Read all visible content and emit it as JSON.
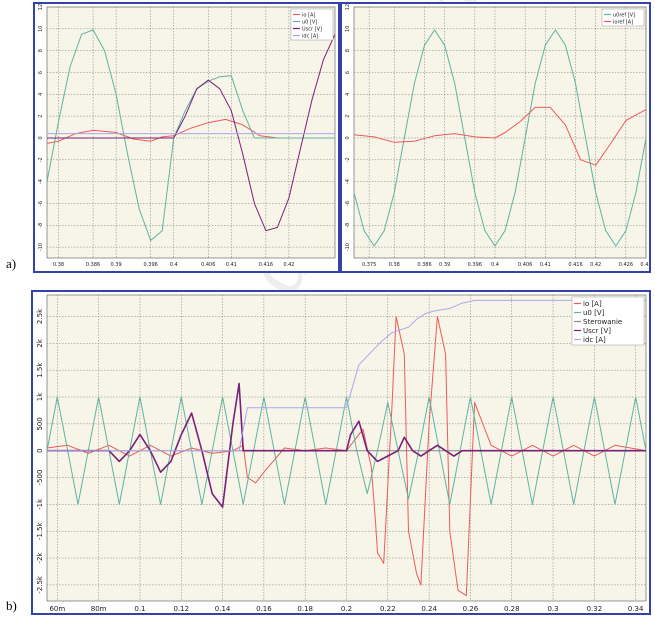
{
  "labels": {
    "a": "a)",
    "b": "b)"
  },
  "watermark": "Use only - distribution",
  "colors": {
    "io": "#ee5a5a",
    "u0": "#5fb3a0",
    "ster": "#8a8a8a",
    "uscr": "#7a1f7a",
    "idc": "#a8a8ee",
    "plot_bg": "#f7f5e8",
    "frame_blue": "#3343aa"
  },
  "chart_data": [
    {
      "type": "line",
      "title": "",
      "grid": true,
      "legend_placement": "top-right",
      "xlim": [
        0.378,
        0.428
      ],
      "ylim": [
        -11,
        12
      ],
      "x_ticks": [
        "0.38",
        "0.386",
        "0.39",
        "0.396",
        "0.4",
        "0.406",
        "0.41",
        "0.416",
        "0.42"
      ],
      "x_tick_values": [
        0.38,
        0.386,
        0.39,
        0.396,
        0.4,
        0.406,
        0.41,
        0.416,
        0.42
      ],
      "y_ticks": [
        "12",
        "10",
        "8",
        "6",
        "4",
        "2",
        "0",
        "-2",
        "-4",
        "-6",
        "-8",
        "-10"
      ],
      "y_tick_values": [
        12,
        10,
        8,
        6,
        4,
        2,
        0,
        -2,
        -4,
        -6,
        -8,
        -10
      ],
      "series": [
        {
          "name": "io [A]",
          "color_key": "io",
          "x": [
            0.378,
            0.38,
            0.383,
            0.386,
            0.39,
            0.393,
            0.396,
            0.398,
            0.4,
            0.403,
            0.406,
            0.409,
            0.412,
            0.415,
            0.418,
            0.421,
            0.424,
            0.428
          ],
          "y": [
            -0.5,
            -0.3,
            0.4,
            0.7,
            0.5,
            -0.1,
            -0.3,
            0.1,
            0.2,
            0.9,
            1.4,
            1.7,
            1.2,
            0.2,
            0,
            0,
            0,
            0
          ]
        },
        {
          "name": "u0 [V]",
          "color_key": "u0",
          "x": [
            0.378,
            0.38,
            0.382,
            0.384,
            0.386,
            0.388,
            0.39,
            0.392,
            0.394,
            0.396,
            0.398,
            0.4,
            0.402,
            0.404,
            0.406,
            0.408,
            0.41,
            0.412,
            0.414,
            0.416,
            0.418,
            0.42,
            0.422,
            0.424,
            0.426,
            0.428
          ],
          "y": [
            -4,
            1.5,
            6.5,
            9.5,
            9.9,
            8,
            4,
            -1.5,
            -6.5,
            -9.4,
            -8.5,
            0,
            2.5,
            4.5,
            5.2,
            5.6,
            5.7,
            2.5,
            0,
            0,
            0,
            0,
            0,
            0,
            0,
            0
          ]
        },
        {
          "name": "Uscr [V]",
          "color_key": "uscr",
          "x": [
            0.378,
            0.38,
            0.383,
            0.386,
            0.39,
            0.393,
            0.396,
            0.398,
            0.4,
            0.402,
            0.404,
            0.406,
            0.408,
            0.41,
            0.412,
            0.414,
            0.416,
            0.418,
            0.42,
            0.422,
            0.424,
            0.426,
            0.428
          ],
          "y": [
            0,
            0,
            0,
            0,
            0,
            0,
            0,
            0,
            0,
            2,
            4.5,
            5.3,
            4.5,
            2.5,
            -1.5,
            -6,
            -8.5,
            -8.2,
            -5.5,
            -1,
            3.5,
            7.2,
            9.5
          ]
        },
        {
          "name": "idc [A]",
          "color_key": "idc",
          "x": [
            0.378,
            0.428
          ],
          "y": [
            0.4,
            0.4
          ]
        }
      ]
    },
    {
      "type": "line",
      "title": "",
      "grid": true,
      "legend_placement": "top-right",
      "xlim": [
        0.372,
        0.43
      ],
      "ylim": [
        -11,
        12
      ],
      "x_ticks": [
        "0.375",
        "0.38",
        "0.386",
        "0.39",
        "0.396",
        "0.4",
        "0.406",
        "0.41",
        "0.416",
        "0.42",
        "0.426",
        "0.43"
      ],
      "x_tick_values": [
        0.375,
        0.38,
        0.386,
        0.39,
        0.396,
        0.4,
        0.406,
        0.41,
        0.416,
        0.42,
        0.426,
        0.43
      ],
      "y_ticks": [
        "12",
        "10",
        "8",
        "6",
        "4",
        "2",
        "0",
        "-2",
        "-4",
        "-6",
        "-8",
        "-10"
      ],
      "y_tick_values": [
        12,
        10,
        8,
        6,
        4,
        2,
        0,
        -2,
        -4,
        -6,
        -8,
        -10
      ],
      "series": [
        {
          "name": "u0ref [V]",
          "color_key": "u0",
          "x": [
            0.372,
            0.374,
            0.376,
            0.378,
            0.38,
            0.382,
            0.384,
            0.386,
            0.388,
            0.39,
            0.392,
            0.394,
            0.396,
            0.398,
            0.4,
            0.402,
            0.404,
            0.406,
            0.408,
            0.41,
            0.412,
            0.414,
            0.416,
            0.418,
            0.42,
            0.422,
            0.424,
            0.426,
            0.428,
            0.43
          ],
          "y": [
            -5,
            -8.5,
            -9.9,
            -8.5,
            -5,
            0,
            5,
            8.5,
            9.9,
            8.5,
            5,
            0,
            -5,
            -8.5,
            -9.9,
            -8.5,
            -5,
            0,
            5,
            8.5,
            9.9,
            8.5,
            5,
            0,
            -5,
            -8.5,
            -9.9,
            -8.5,
            -5,
            0
          ]
        },
        {
          "name": "ioref [A]",
          "color_key": "io",
          "x": [
            0.372,
            0.376,
            0.38,
            0.384,
            0.388,
            0.392,
            0.396,
            0.4,
            0.402,
            0.405,
            0.408,
            0.411,
            0.414,
            0.417,
            0.42,
            0.423,
            0.426,
            0.43
          ],
          "y": [
            0.3,
            0.1,
            -0.4,
            -0.3,
            0.2,
            0.4,
            0.1,
            0,
            0.5,
            1.5,
            2.8,
            2.8,
            1.2,
            -2,
            -2.5,
            -0.5,
            1.6,
            2.6
          ]
        }
      ]
    },
    {
      "type": "line",
      "title": "",
      "grid": true,
      "legend_placement": "top-right",
      "xlim": [
        0.055,
        0.345
      ],
      "ylim": [
        -2.8,
        2.9
      ],
      "x_ticks": [
        "60m",
        "80m",
        "0.1",
        "0.12",
        "0.14",
        "0.16",
        "0.18",
        "0.2",
        "0.22",
        "0.24",
        "0.26",
        "0.28",
        "0.3",
        "0.32",
        "0.34"
      ],
      "x_tick_values": [
        0.06,
        0.08,
        0.1,
        0.12,
        0.14,
        0.16,
        0.18,
        0.2,
        0.22,
        0.24,
        0.26,
        0.28,
        0.3,
        0.32,
        0.34
      ],
      "y_ticks": [
        "2.5k",
        "2k",
        "1.5k",
        "1k",
        "500",
        "0",
        "-500",
        "-1k",
        "-1.5k",
        "-2k",
        "-2.5k"
      ],
      "y_tick_values": [
        2.5,
        2,
        1.5,
        1,
        0.5,
        0,
        -0.5,
        -1,
        -1.5,
        -2,
        -2.5
      ],
      "series": [
        {
          "name": "io [A]",
          "color_key": "io",
          "x": [
            0.055,
            0.065,
            0.075,
            0.085,
            0.095,
            0.105,
            0.115,
            0.125,
            0.135,
            0.145,
            0.15,
            0.152,
            0.156,
            0.16,
            0.17,
            0.18,
            0.19,
            0.2,
            0.204,
            0.208,
            0.212,
            0.214,
            0.215,
            0.218,
            0.222,
            0.224,
            0.228,
            0.23,
            0.234,
            0.236,
            0.24,
            0.244,
            0.248,
            0.25,
            0.254,
            0.258,
            0.262,
            0.27,
            0.28,
            0.29,
            0.3,
            0.31,
            0.32,
            0.33,
            0.345
          ],
          "y": [
            0.05,
            0.1,
            -0.05,
            0.1,
            -0.1,
            0.1,
            -0.1,
            0.05,
            -0.05,
            0,
            0.1,
            -0.5,
            -0.6,
            -0.4,
            0.05,
            0,
            0.05,
            0,
            0.2,
            0.4,
            -0.3,
            -1.3,
            -1.9,
            -2.1,
            0.8,
            2.5,
            1.8,
            -1.5,
            -2.3,
            -2.5,
            0.5,
            2.5,
            1.8,
            -1.5,
            -2.6,
            -2.7,
            0.9,
            0.1,
            -0.1,
            0.1,
            -0.1,
            0.1,
            -0.1,
            0.1,
            0
          ]
        },
        {
          "name": "u0 [V]",
          "color_key": "u0",
          "x": [
            0.055,
            0.06,
            0.065,
            0.07,
            0.075,
            0.08,
            0.085,
            0.09,
            0.095,
            0.1,
            0.105,
            0.11,
            0.115,
            0.12,
            0.125,
            0.13,
            0.135,
            0.14,
            0.145,
            0.15,
            0.155,
            0.16,
            0.165,
            0.17,
            0.175,
            0.18,
            0.185,
            0.19,
            0.195,
            0.2,
            0.205,
            0.21,
            0.215,
            0.22,
            0.225,
            0.23,
            0.235,
            0.24,
            0.245,
            0.25,
            0.255,
            0.26,
            0.265,
            0.27,
            0.275,
            0.28,
            0.285,
            0.29,
            0.295,
            0.3,
            0.305,
            0.31,
            0.315,
            0.32,
            0.325,
            0.33,
            0.335,
            0.34,
            0.345
          ],
          "y": [
            0,
            1,
            0,
            -1,
            0,
            1,
            0,
            -1,
            0,
            1,
            0,
            -1,
            0,
            1,
            0,
            -1,
            0,
            1,
            0,
            -1,
            0,
            1,
            0,
            -1,
            0,
            1,
            0,
            -1,
            0,
            1,
            0,
            -0.8,
            0,
            0.9,
            0,
            -0.9,
            0,
            1,
            0,
            -1,
            0,
            1,
            0,
            -1,
            0,
            1,
            0,
            -1,
            0,
            1,
            0,
            -1,
            0,
            1,
            0,
            -1,
            0,
            1,
            0
          ]
        },
        {
          "name": "Sterowanie",
          "color_key": "ster",
          "x": [
            0.055,
            0.345
          ],
          "y": [
            0,
            0
          ]
        },
        {
          "name": "Uscr [V]",
          "color_key": "uscr",
          "x": [
            0.055,
            0.085,
            0.09,
            0.095,
            0.1,
            0.105,
            0.11,
            0.115,
            0.12,
            0.125,
            0.13,
            0.135,
            0.14,
            0.145,
            0.148,
            0.15,
            0.2,
            0.202,
            0.206,
            0.21,
            0.215,
            0.225,
            0.228,
            0.232,
            0.236,
            0.24,
            0.244,
            0.248,
            0.252,
            0.256,
            0.26,
            0.345
          ],
          "y": [
            0,
            0,
            -0.2,
            0,
            0.3,
            0,
            -0.4,
            -0.2,
            0.3,
            0.7,
            0,
            -0.8,
            -1.05,
            0.5,
            1.25,
            0,
            0,
            0.3,
            0.55,
            0,
            -0.2,
            0,
            0.25,
            0,
            -0.1,
            0,
            0.1,
            0,
            -0.1,
            0,
            0,
            0
          ]
        },
        {
          "name": "idc [A]",
          "color_key": "idc",
          "x": [
            0.055,
            0.148,
            0.152,
            0.2,
            0.206,
            0.216,
            0.222,
            0.23,
            0.234,
            0.238,
            0.242,
            0.25,
            0.256,
            0.262,
            0.345
          ],
          "y": [
            0,
            0,
            0.8,
            0.8,
            1.6,
            2.0,
            2.2,
            2.3,
            2.45,
            2.55,
            2.6,
            2.65,
            2.75,
            2.8,
            2.8
          ]
        }
      ]
    }
  ]
}
